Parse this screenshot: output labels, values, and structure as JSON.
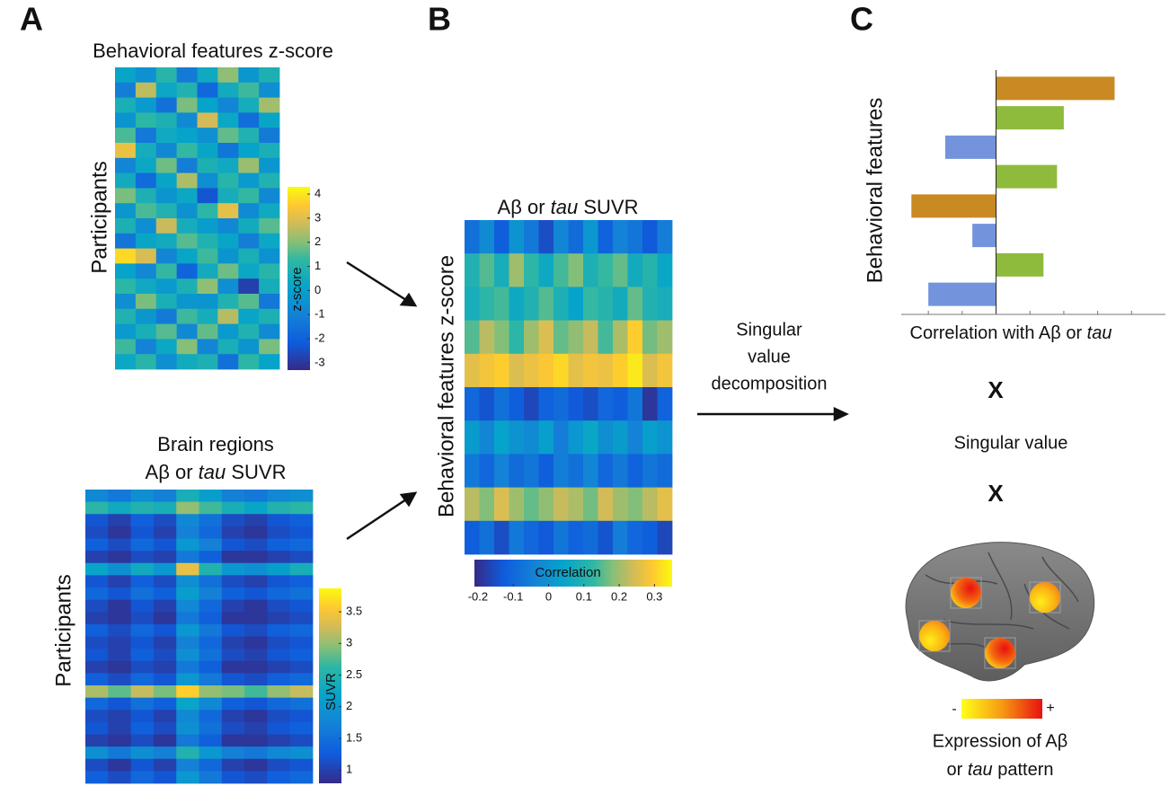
{
  "panel_labels": [
    "A",
    "B",
    "C"
  ],
  "behavior_heatmap": {
    "title": "Behavioral features z-score",
    "ylabel": "Participants",
    "colorbar_label": "z-score",
    "clim": [
      -3.3,
      4.3
    ],
    "cticks": [
      -3,
      -2,
      -1,
      0,
      1,
      2,
      3,
      4
    ],
    "values": [
      [
        0.2,
        -0.5,
        1.1,
        -1.2,
        0.4,
        2.1,
        -0.3,
        0.8
      ],
      [
        -1.1,
        2.6,
        0.3,
        0.9,
        -1.8,
        0.5,
        1.4,
        -0.6
      ],
      [
        0.7,
        -0.2,
        -1.5,
        1.9,
        0.1,
        -0.9,
        0.6,
        2.3
      ],
      [
        -0.4,
        1.2,
        0.8,
        -0.7,
        2.8,
        0.3,
        -1.6,
        0.2
      ],
      [
        1.5,
        -1.3,
        0.4,
        0.1,
        -0.5,
        1.7,
        0.9,
        -1.2
      ],
      [
        3.2,
        0.6,
        -0.8,
        1.3,
        0.2,
        -1.4,
        0.1,
        0.7
      ],
      [
        -0.9,
        0.3,
        1.8,
        -1.1,
        0.8,
        0.4,
        2.2,
        -0.3
      ],
      [
        0.5,
        -1.7,
        0.2,
        2.4,
        -0.6,
        1.1,
        -0.2,
        0.9
      ],
      [
        1.9,
        0.8,
        -0.4,
        0.3,
        -2.3,
        0.6,
        1.3,
        -0.8
      ],
      [
        -0.3,
        1.5,
        0.9,
        -0.5,
        1.2,
        3.1,
        -0.7,
        0.4
      ],
      [
        0.8,
        -0.6,
        2.7,
        0.6,
        -0.1,
        -0.8,
        0.5,
        1.6
      ],
      [
        -1.4,
        0.2,
        0.5,
        1.6,
        0.9,
        0.2,
        -1.1,
        0.3
      ],
      [
        3.8,
        2.9,
        -0.9,
        0.2,
        1.4,
        -0.4,
        0.7,
        -0.5
      ],
      [
        0.1,
        -0.8,
        1.3,
        -1.9,
        0.5,
        1.8,
        0.3,
        1.1
      ],
      [
        1.2,
        0.4,
        -0.2,
        0.8,
        2.1,
        -0.6,
        -2.8,
        0.6
      ],
      [
        -0.6,
        1.9,
        0.7,
        -0.3,
        -0.4,
        0.9,
        1.6,
        -1.3
      ],
      [
        0.9,
        -0.3,
        -1.2,
        1.4,
        0.6,
        2.5,
        0.2,
        0.8
      ],
      [
        -0.2,
        0.7,
        1.6,
        -0.8,
        1.7,
        -0.2,
        0.9,
        -0.7
      ],
      [
        1.4,
        -1.0,
        0.3,
        2.0,
        -0.9,
        0.7,
        -0.4,
        1.9
      ],
      [
        0.3,
        1.1,
        -0.6,
        0.5,
        0.8,
        -1.5,
        1.2,
        0.1
      ]
    ]
  },
  "brain_heatmap": {
    "title_line1": "Brain regions",
    "title_line2": [
      "Aβ or ",
      "tau",
      " SUVR"
    ],
    "ylabel": "Participants",
    "colorbar_label": "SUVR",
    "clim": [
      0.79,
      3.87
    ],
    "cticks": [
      1,
      1.5,
      2,
      2.5,
      3,
      3.5
    ],
    "values": [
      [
        1.8,
        1.6,
        1.9,
        1.7,
        2.4,
        2.1,
        1.7,
        1.6,
        1.8,
        1.9
      ],
      [
        2.6,
        2.3,
        2.5,
        2.4,
        3.0,
        2.7,
        2.4,
        2.2,
        2.5,
        2.6
      ],
      [
        1.2,
        1.0,
        1.3,
        1.1,
        1.8,
        1.5,
        1.1,
        1.0,
        1.2,
        1.3
      ],
      [
        1.1,
        0.9,
        1.2,
        1.0,
        1.7,
        1.4,
        1.0,
        0.9,
        1.1,
        1.2
      ],
      [
        1.3,
        1.1,
        1.4,
        1.2,
        2.0,
        1.7,
        1.2,
        1.1,
        1.3,
        1.4
      ],
      [
        1.0,
        0.9,
        1.1,
        1.0,
        1.6,
        1.3,
        0.9,
        0.9,
        1.0,
        1.1
      ],
      [
        2.2,
        1.9,
        2.3,
        2.0,
        3.4,
        2.5,
        2.0,
        1.9,
        2.1,
        2.4
      ],
      [
        1.2,
        1.0,
        1.3,
        1.1,
        1.9,
        1.5,
        1.1,
        1.0,
        1.2,
        1.3
      ],
      [
        1.4,
        1.2,
        1.5,
        1.3,
        2.1,
        1.7,
        1.3,
        1.2,
        1.4,
        1.5
      ],
      [
        1.1,
        0.9,
        1.2,
        1.0,
        1.8,
        1.4,
        1.0,
        0.9,
        1.1,
        1.2
      ],
      [
        1.0,
        0.9,
        1.1,
        0.9,
        1.6,
        1.3,
        0.9,
        0.9,
        1.0,
        1.1
      ],
      [
        1.3,
        1.1,
        1.4,
        1.2,
        2.0,
        1.6,
        1.2,
        1.1,
        1.3,
        1.4
      ],
      [
        1.1,
        1.0,
        1.2,
        1.0,
        1.7,
        1.4,
        1.0,
        0.9,
        1.1,
        1.2
      ],
      [
        1.2,
        1.0,
        1.3,
        1.1,
        1.9,
        1.5,
        1.1,
        1.0,
        1.2,
        1.3
      ],
      [
        1.0,
        0.9,
        1.1,
        1.0,
        1.6,
        1.3,
        0.9,
        0.9,
        1.0,
        1.1
      ],
      [
        1.3,
        1.1,
        1.4,
        1.2,
        2.0,
        1.6,
        1.2,
        1.1,
        1.3,
        1.4
      ],
      [
        3.1,
        2.8,
        3.2,
        2.9,
        3.6,
        3.0,
        2.9,
        2.7,
        3.0,
        3.2
      ],
      [
        1.4,
        1.2,
        1.5,
        1.3,
        2.2,
        1.8,
        1.3,
        1.2,
        1.4,
        1.5
      ],
      [
        1.1,
        1.0,
        1.2,
        1.0,
        1.8,
        1.4,
        1.0,
        0.9,
        1.1,
        1.2
      ],
      [
        1.2,
        1.0,
        1.3,
        1.1,
        1.9,
        1.5,
        1.1,
        1.0,
        1.2,
        1.3
      ],
      [
        1.0,
        0.9,
        1.1,
        0.9,
        1.6,
        1.3,
        0.9,
        0.9,
        1.0,
        1.1
      ],
      [
        1.9,
        1.6,
        1.9,
        1.7,
        2.5,
        2.0,
        1.7,
        1.6,
        1.8,
        1.9
      ],
      [
        1.1,
        0.9,
        1.2,
        1.0,
        1.7,
        1.4,
        1.0,
        0.9,
        1.1,
        1.2
      ],
      [
        1.3,
        1.1,
        1.4,
        1.2,
        2.0,
        1.6,
        1.2,
        1.1,
        1.3,
        1.4
      ]
    ]
  },
  "correlation_heatmap": {
    "title": [
      "Aβ or ",
      "tau",
      " SUVR"
    ],
    "ylabel": "Behavioral features z-score",
    "colorbar_label": "Correlation",
    "clim": [
      -0.21,
      0.35
    ],
    "cticks": [
      -0.2,
      -0.1,
      0,
      0.1,
      0.2,
      0.3
    ],
    "values": [
      [
        -0.08,
        -0.02,
        -0.12,
        0.0,
        -0.06,
        -0.15,
        -0.03,
        -0.09,
        0.01,
        -0.11,
        -0.04,
        -0.07,
        -0.13,
        -0.05
      ],
      [
        0.1,
        0.15,
        0.08,
        0.2,
        0.12,
        0.06,
        0.14,
        0.18,
        0.09,
        0.13,
        0.16,
        0.07,
        0.11,
        0.05
      ],
      [
        0.08,
        0.12,
        0.14,
        0.06,
        0.1,
        0.15,
        0.09,
        0.04,
        0.13,
        0.11,
        0.07,
        0.16,
        0.1,
        0.08
      ],
      [
        0.15,
        0.22,
        0.18,
        0.12,
        0.2,
        0.25,
        0.16,
        0.19,
        0.23,
        0.14,
        0.21,
        0.3,
        0.17,
        0.2
      ],
      [
        0.26,
        0.28,
        0.3,
        0.25,
        0.27,
        0.29,
        0.31,
        0.26,
        0.28,
        0.27,
        0.3,
        0.33,
        0.25,
        0.28
      ],
      [
        -0.1,
        -0.14,
        -0.08,
        -0.12,
        -0.16,
        -0.11,
        -0.09,
        -0.13,
        -0.15,
        -0.1,
        -0.12,
        -0.07,
        -0.19,
        -0.11
      ],
      [
        0.02,
        -0.03,
        0.04,
        0.0,
        -0.02,
        0.03,
        -0.05,
        0.01,
        0.05,
        -0.01,
        0.02,
        -0.04,
        0.03,
        0.0
      ],
      [
        -0.06,
        -0.1,
        -0.04,
        -0.09,
        -0.07,
        -0.12,
        -0.05,
        -0.08,
        -0.03,
        -0.1,
        -0.06,
        -0.11,
        -0.07,
        -0.09
      ],
      [
        0.22,
        0.18,
        0.25,
        0.2,
        0.16,
        0.19,
        0.23,
        0.21,
        0.17,
        0.24,
        0.2,
        0.18,
        0.22,
        0.26
      ],
      [
        -0.12,
        -0.08,
        -0.15,
        -0.06,
        -0.1,
        -0.13,
        -0.07,
        -0.11,
        -0.09,
        -0.14,
        -0.05,
        -0.1,
        -0.12,
        -0.16
      ]
    ]
  },
  "svd_label": [
    "Singular",
    "value",
    "decomposition"
  ],
  "loadings_chart": {
    "type": "bar",
    "ylabel": "Behavioral features",
    "xlabel": [
      "Correlation with Aβ or ",
      "tau"
    ],
    "values": [
      0.35,
      0.2,
      -0.15,
      0.18,
      -0.25,
      -0.07,
      0.14,
      -0.2
    ],
    "colors": [
      "#c98a24",
      "#8fbb3c",
      "#7394dc",
      "#8fbb3c",
      "#c98a24",
      "#7394dc",
      "#8fbb3c",
      "#7394dc"
    ],
    "xlim": [
      -0.28,
      0.5
    ],
    "xticks": [
      -0.2,
      -0.1,
      0.1,
      0.2,
      0.3,
      0.4
    ]
  },
  "multiply_sign": "X",
  "singular_value": "Singular value",
  "brain_legend": {
    "minus": "-",
    "plus": "+",
    "caption_line1": "Expression of Aβ",
    "caption_line2": [
      "or ",
      "tau",
      " pattern"
    ]
  }
}
